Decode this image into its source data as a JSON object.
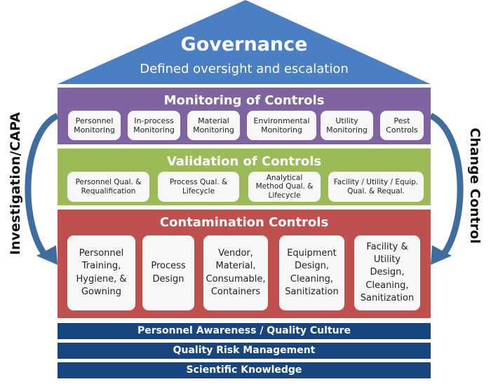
{
  "colors": {
    "roof": "#4a7fc4",
    "monitoring": "#8064a2",
    "validation": "#9bbb59",
    "contamination": "#c0504d",
    "foundation": "#17457f",
    "arrow": "#3f6e9e"
  },
  "roof": {
    "title": "Governance",
    "subtitle": "Defined oversight and escalation"
  },
  "monitoring": {
    "title": "Monitoring of Controls",
    "items": [
      "Personnel Monitoring",
      "In-process Monitoring",
      "Material Monitoring",
      "Environmental Monitoring",
      "Utility Monitoring",
      "Pest Controls"
    ]
  },
  "validation": {
    "title": "Validation of Controls",
    "items": [
      "Personnel Qual. & Requalification",
      "Process Qual. & Lifecycle",
      "Analytical Method Qual. & Lifecycle",
      "Facility / Utility / Equip. Qual. & Requal."
    ]
  },
  "contamination": {
    "title": "Contamination Controls",
    "items": [
      "Personnel Training, Hygiene, & Gowning",
      "Process Design",
      "Vendor, Material, Consumable, Containers",
      "Equipment Design, Cleaning, Sanitization",
      "Facility & Utility Design, Cleaning, Sanitization"
    ]
  },
  "foundation": [
    "Personnel Awareness / Quality Culture",
    "Quality Risk Management",
    "Scientific Knowledge"
  ],
  "side_labels": {
    "left": "Investigation/CAPA",
    "right": "Change Control"
  }
}
